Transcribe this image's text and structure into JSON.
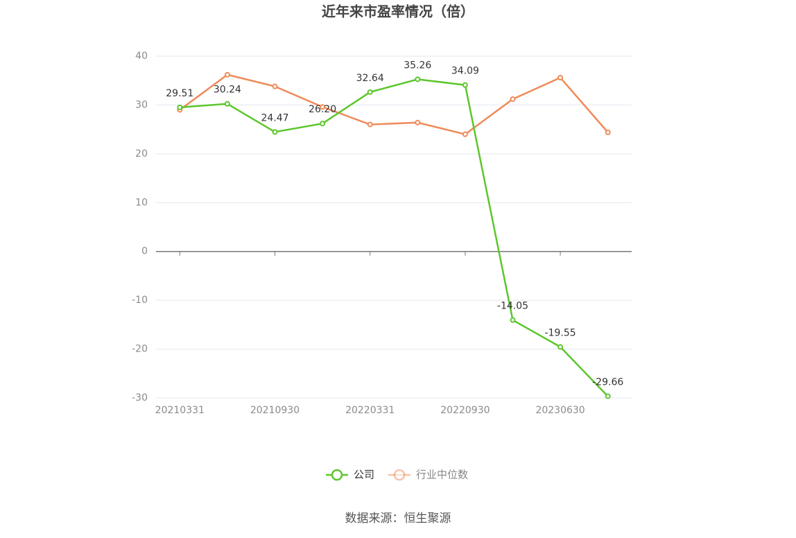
{
  "chart_data": {
    "type": "line",
    "title": "近年来市盈率情况（倍）",
    "categories": [
      "20210331",
      null,
      "20210930",
      null,
      "20220331",
      null,
      "20220930",
      null,
      "20230630",
      null
    ],
    "series": [
      {
        "name": "公司",
        "color": "#5cc62b",
        "values": [
          29.51,
          30.24,
          24.47,
          26.2,
          32.64,
          35.26,
          34.09,
          -14.05,
          -19.55,
          -29.66
        ],
        "value_labels": [
          "29.51",
          "30.24",
          "24.47",
          "26.20",
          "32.64",
          "35.26",
          "34.09",
          "-14.05",
          "-19.55",
          "-29.66"
        ]
      },
      {
        "name": "行业中位数",
        "color": "#ef8a58",
        "values": [
          29.0,
          36.2,
          33.8,
          29.6,
          26.0,
          26.4,
          24.0,
          31.2,
          35.6,
          24.4
        ]
      }
    ],
    "ylim": [
      -30,
      40
    ],
    "yticks": [
      -30,
      -20,
      -10,
      0,
      10,
      20,
      30,
      40
    ],
    "grid": true,
    "legend": "bottom",
    "source": "数据来源：恒生聚源"
  }
}
